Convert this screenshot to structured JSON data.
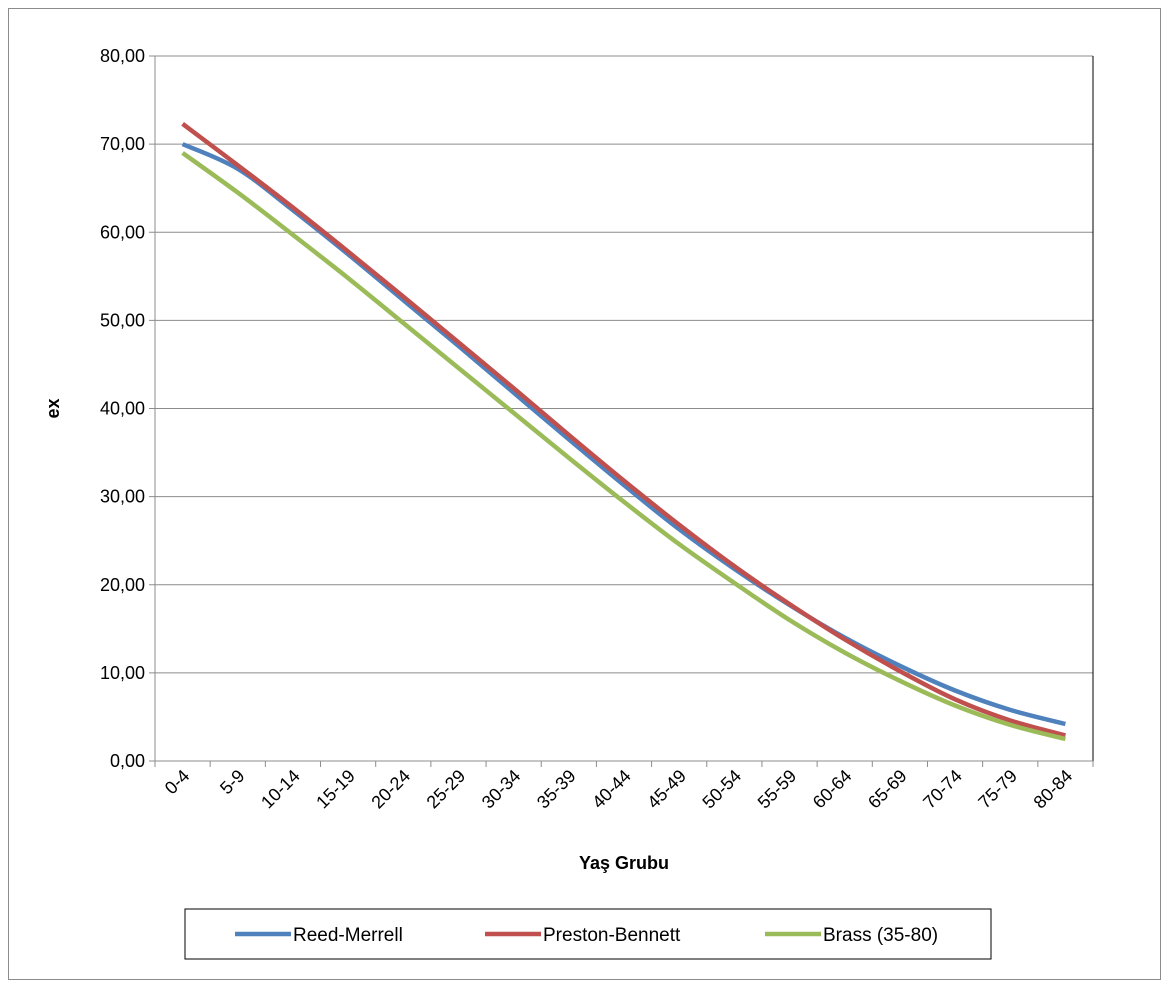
{
  "chart_data": {
    "type": "line",
    "title": "",
    "xlabel": "Yaş Grubu",
    "ylabel": "ex",
    "ylim": [
      0,
      80
    ],
    "y_ticks": [
      "0,00",
      "10,00",
      "20,00",
      "30,00",
      "40,00",
      "50,00",
      "60,00",
      "70,00",
      "80,00"
    ],
    "categories": [
      "0-4",
      "5-9",
      "10-14",
      "15-19",
      "20-24",
      "25-29",
      "30-34",
      "35-39",
      "40-44",
      "45-49",
      "50-54",
      "55-59",
      "60-64",
      "65-69",
      "70-74",
      "75-79",
      "80-84"
    ],
    "grid": true,
    "legend_position": "bottom",
    "series": [
      {
        "name": "Reed-Merrell",
        "color": "#4f81bd",
        "values": [
          70.0,
          67.2,
          62.5,
          57.5,
          52.3,
          47.1,
          41.8,
          36.5,
          31.3,
          26.3,
          21.8,
          17.7,
          14.0,
          10.8,
          8.0,
          5.8,
          4.2
        ]
      },
      {
        "name": "Preston-Bennett",
        "color": "#c0504d",
        "values": [
          72.3,
          67.6,
          62.8,
          57.8,
          52.7,
          47.5,
          42.3,
          37.0,
          31.8,
          26.8,
          22.1,
          17.8,
          13.8,
          10.2,
          7.0,
          4.6,
          2.9
        ]
      },
      {
        "name": "Brass (35-80)",
        "color": "#9bbb59",
        "values": [
          69.0,
          64.5,
          59.7,
          54.8,
          49.7,
          44.6,
          39.5,
          34.4,
          29.4,
          24.6,
          20.2,
          16.0,
          12.3,
          9.1,
          6.3,
          4.1,
          2.5
        ]
      }
    ]
  }
}
